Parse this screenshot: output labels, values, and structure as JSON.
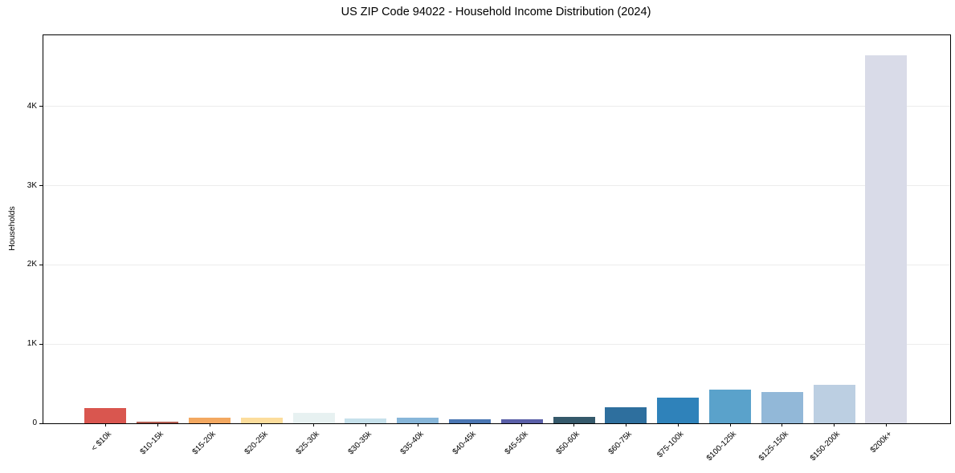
{
  "chart_data": {
    "type": "bar",
    "title": "US ZIP Code 94022 - Household Income Distribution (2024)",
    "xlabel": "",
    "ylabel": "Households",
    "categories": [
      "< $10k",
      "$10-15k",
      "$15-20k",
      "$20-25k",
      "$25-30k",
      "$30-35k",
      "$35-40k",
      "$40-45k",
      "$45-50k",
      "$50-60k",
      "$60-75k",
      "$75-100k",
      "$100-125k",
      "$125-150k",
      "$150-200k",
      "$200k+"
    ],
    "values": [
      195,
      25,
      75,
      70,
      128,
      60,
      72,
      50,
      52,
      82,
      205,
      320,
      430,
      390,
      490,
      4650
    ],
    "bar_colors": [
      "#d9564f",
      "#b05c50",
      "#f3a860",
      "#fcdd9c",
      "#e7f1f1",
      "#c6e1eb",
      "#87b6d9",
      "#4a76b3",
      "#5a5fa8",
      "#35596b",
      "#2e6f9e",
      "#2f82ba",
      "#5aa2cb",
      "#92b8d8",
      "#bccfe2",
      "#d9dbe8"
    ],
    "ylim": [
      0,
      4900
    ],
    "yticks": [
      {
        "value": 0,
        "label": "0"
      },
      {
        "value": 1000,
        "label": "1K"
      },
      {
        "value": 2000,
        "label": "2K"
      },
      {
        "value": 3000,
        "label": "3K"
      },
      {
        "value": 4000,
        "label": "4K"
      }
    ],
    "grid": "horizontal",
    "gridline_color": "#ececec",
    "spine_color": "#000000",
    "background": "#ffffff",
    "legend": "none"
  }
}
